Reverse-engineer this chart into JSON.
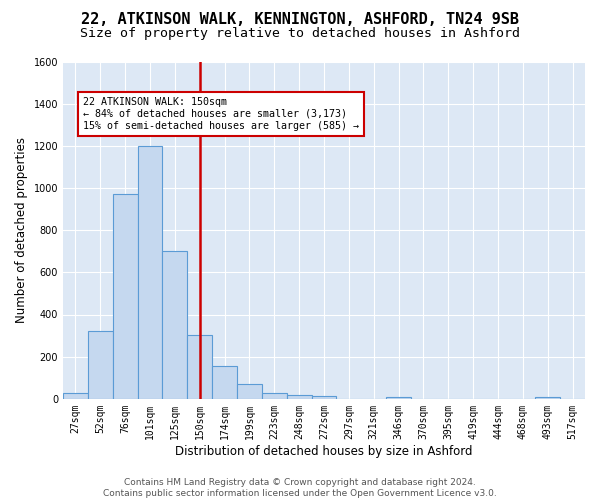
{
  "title_line1": "22, ATKINSON WALK, KENNINGTON, ASHFORD, TN24 9SB",
  "title_line2": "Size of property relative to detached houses in Ashford",
  "xlabel": "Distribution of detached houses by size in Ashford",
  "ylabel": "Number of detached properties",
  "footer_line1": "Contains HM Land Registry data © Crown copyright and database right 2024.",
  "footer_line2": "Contains public sector information licensed under the Open Government Licence v3.0.",
  "annotation_line1": "22 ATKINSON WALK: 150sqm",
  "annotation_line2": "← 84% of detached houses are smaller (3,173)",
  "annotation_line3": "15% of semi-detached houses are larger (585) →",
  "bar_values": [
    30,
    320,
    970,
    1200,
    700,
    305,
    155,
    70,
    30,
    20,
    15,
    0,
    0,
    10,
    0,
    0,
    0,
    0,
    0,
    10,
    0
  ],
  "categories": [
    "27sqm",
    "52sqm",
    "76sqm",
    "101sqm",
    "125sqm",
    "150sqm",
    "174sqm",
    "199sqm",
    "223sqm",
    "248sqm",
    "272sqm",
    "297sqm",
    "321sqm",
    "346sqm",
    "370sqm",
    "395sqm",
    "419sqm",
    "444sqm",
    "468sqm",
    "493sqm",
    "517sqm"
  ],
  "bar_color": "#c5d8ef",
  "bar_edge_color": "#5b9bd5",
  "vline_color": "#cc0000",
  "vline_x": 5,
  "ylim": [
    0,
    1600
  ],
  "yticks": [
    0,
    200,
    400,
    600,
    800,
    1000,
    1200,
    1400,
    1600
  ],
  "background_color": "#dde8f5",
  "grid_color": "#ffffff",
  "annotation_box_edge_color": "#cc0000",
  "title1_fontsize": 11,
  "title2_fontsize": 9.5,
  "axis_label_fontsize": 8.5,
  "tick_fontsize": 7,
  "footer_fontsize": 6.5
}
